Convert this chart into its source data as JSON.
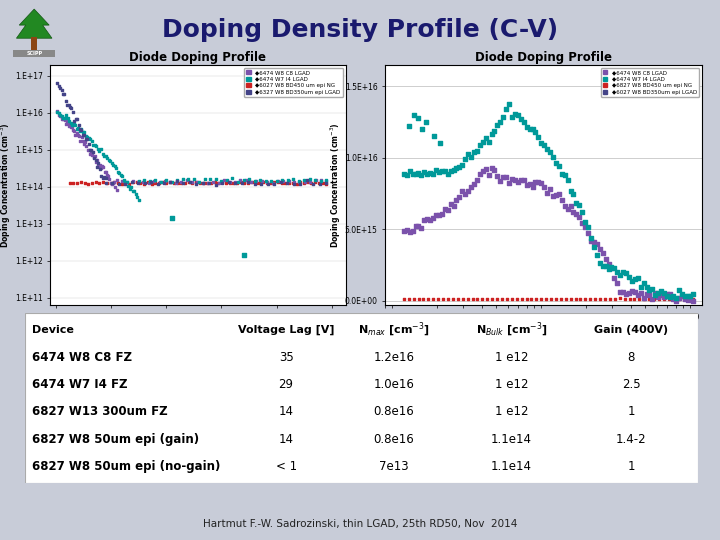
{
  "title": "Doping Density Profile (C-V)",
  "background_color": "#c8ccd8",
  "title_color": "#1a1a6e",
  "table_rows": [
    [
      "6474 W8 C8 FZ",
      "35",
      "1.2e16",
      "1 e12",
      "8"
    ],
    [
      "6474 W7 I4 FZ",
      "29",
      "1.0e16",
      "1 e12",
      "2.5"
    ],
    [
      "6827 W13 300um FZ",
      "14",
      "0.8e16",
      "1 e12",
      "1"
    ],
    [
      "6827 W8 50um epi (gain)",
      "14",
      "0.8e16",
      "1.1e14",
      "1.4-2"
    ],
    [
      "6827 W8 50um epi (no-gain)",
      "< 1",
      "7e13",
      "1.1e14",
      "1"
    ]
  ],
  "footer": "Hartmut F.-W. Sadrozinski, thin LGAD, 25th RD50, Nov  2014",
  "left_legend": [
    "6474 W8 C8 LGAD",
    "6474 W7 I4 LGAD",
    "6027 W8 BD450 um epi NG",
    "6327 W8 BD350um epi LGAD"
  ],
  "left_legend_colors": [
    "#7b52ab",
    "#009999",
    "#cc2222",
    "#444488"
  ],
  "right_legend": [
    "6474 W8 C8 LGAD",
    "6474 W7 I4 LGAD",
    "6827 W8 BD450 um epi NG",
    "6027 W8 BD350um epi LGAD"
  ],
  "right_legend_colors": [
    "#7b52ab",
    "#009999",
    "#cc2222",
    "#444488"
  ]
}
